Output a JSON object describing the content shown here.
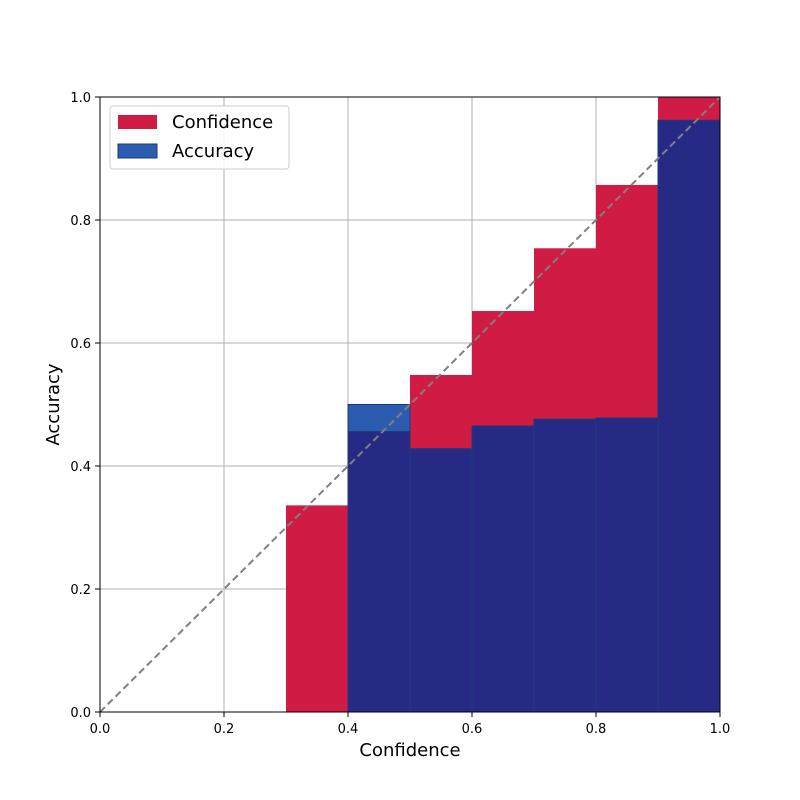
{
  "chart_data": {
    "type": "bar",
    "title": "",
    "xlabel": "Confidence",
    "ylabel": "Accuracy",
    "xlim": [
      0,
      1
    ],
    "ylim": [
      0,
      1
    ],
    "grid": true,
    "legend_position": "top-left",
    "x_ticks": [
      "0.0",
      "0.2",
      "0.4",
      "0.6",
      "0.8",
      "1.0"
    ],
    "y_ticks": [
      "0.0",
      "0.2",
      "0.4",
      "0.6",
      "0.8",
      "1.0"
    ],
    "bin_edges": [
      0.0,
      0.1,
      0.2,
      0.3,
      0.4,
      0.5,
      0.6,
      0.7,
      0.8,
      0.9,
      1.0
    ],
    "series": [
      {
        "name": "Confidence",
        "color": "#d01c44",
        "values": [
          0,
          0,
          0,
          0.336,
          0.456,
          0.548,
          0.652,
          0.754,
          0.857,
          1.0
        ]
      },
      {
        "name": "Accuracy",
        "color": "#2c5caf",
        "values": [
          0,
          0,
          0,
          0,
          0.5,
          0.428,
          0.465,
          0.476,
          0.478,
          0.962
        ]
      }
    ],
    "overlap_color": "#272a84",
    "diagonal": {
      "from": [
        0,
        0
      ],
      "to": [
        1,
        1
      ],
      "style": "dashed",
      "color": "#808080"
    }
  }
}
